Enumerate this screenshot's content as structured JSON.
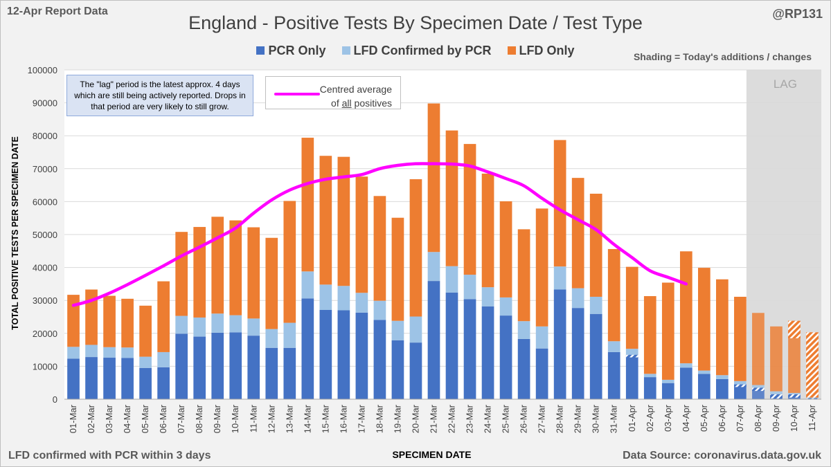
{
  "header": {
    "report_date": "12-Apr Report Data",
    "handle": "@RP131",
    "shading_note": "Shading = Today's additions / changes"
  },
  "notes": {
    "lag_note": "The \"lag\" period is the latest approx. 4 days which are still being actively reported. Drops in that period are very likely to still grow.",
    "avg_label_line1": "Centred average",
    "avg_label_prefix": "of ",
    "avg_label_underlined": "all",
    "avg_label_suffix": " positives",
    "lag_label": "LAG"
  },
  "footer": {
    "left": "LFD confirmed with PCR within 3 days",
    "right": "Data Source: coronavirus.data.gov.uk"
  },
  "colors": {
    "pcr": "#4472c4",
    "lfd_confirmed": "#9dc3e6",
    "lfd_only": "#ed7d31",
    "average": "#ff00ff",
    "lag_band": "#dcdcdc"
  },
  "chart_data": {
    "type": "bar",
    "stacked": true,
    "title": "England - Positive Tests By Specimen Date / Test Type",
    "xlabel": "SPECIMEN DATE",
    "ylabel": "TOTAL POSITIVE TESTS PER SPECIMEN DATE",
    "ylim": [
      0,
      100000
    ],
    "yticks": [
      0,
      10000,
      20000,
      30000,
      40000,
      50000,
      60000,
      70000,
      80000,
      90000,
      100000
    ],
    "grid": true,
    "legend_position": "top",
    "categories": [
      "01-Mar",
      "02-Mar",
      "03-Mar",
      "04-Mar",
      "05-Mar",
      "06-Mar",
      "07-Mar",
      "08-Mar",
      "09-Mar",
      "10-Mar",
      "11-Mar",
      "12-Mar",
      "13-Mar",
      "14-Mar",
      "15-Mar",
      "16-Mar",
      "17-Mar",
      "18-Mar",
      "19-Mar",
      "20-Mar",
      "21-Mar",
      "22-Mar",
      "23-Mar",
      "24-Mar",
      "25-Mar",
      "26-Mar",
      "27-Mar",
      "28-Mar",
      "29-Mar",
      "30-Mar",
      "31-Mar",
      "01-Apr",
      "02-Apr",
      "03-Apr",
      "04-Apr",
      "05-Apr",
      "06-Apr",
      "07-Apr",
      "08-Apr",
      "09-Apr",
      "10-Apr",
      "11-Apr"
    ],
    "series": [
      {
        "name": "PCR Only",
        "values": [
          12300,
          12800,
          12600,
          12500,
          9500,
          9700,
          19900,
          19000,
          20200,
          20300,
          19300,
          15600,
          15600,
          30600,
          27100,
          27000,
          26300,
          24100,
          17900,
          17200,
          35900,
          32400,
          30400,
          28200,
          25400,
          18300,
          15400,
          33300,
          27700,
          25900,
          14300,
          13500,
          6700,
          4900,
          9600,
          7700,
          6100,
          4500,
          3500,
          1500,
          1500,
          300
        ]
      },
      {
        "name": "LFD Confirmed by PCR",
        "values": [
          3600,
          3700,
          3200,
          3200,
          3400,
          4600,
          5400,
          5800,
          5800,
          5200,
          5200,
          5700,
          7600,
          8200,
          7700,
          7400,
          6000,
          5800,
          5900,
          7900,
          8800,
          8000,
          7400,
          5800,
          5500,
          5400,
          6700,
          7000,
          6000,
          5200,
          3300,
          1800,
          1000,
          1000,
          1300,
          1000,
          1200,
          1000,
          800,
          900,
          400,
          200
        ]
      },
      {
        "name": "LFD Only",
        "values": [
          15800,
          16800,
          15600,
          14800,
          15500,
          21500,
          25500,
          27500,
          29400,
          28800,
          27700,
          27700,
          37000,
          40600,
          39100,
          39200,
          35300,
          31800,
          31300,
          41700,
          45100,
          41200,
          39700,
          34500,
          29200,
          27900,
          35800,
          38400,
          33500,
          31300,
          28000,
          24900,
          23600,
          29500,
          34000,
          31200,
          29100,
          25600,
          21900,
          19700,
          21900,
          19800
        ]
      }
    ],
    "new_additions": {
      "PCR Only": [
        0,
        0,
        0,
        0,
        0,
        0,
        0,
        0,
        0,
        0,
        0,
        0,
        0,
        0,
        0,
        0,
        0,
        0,
        0,
        0,
        0,
        0,
        0,
        0,
        0,
        0,
        0,
        0,
        0,
        0,
        0,
        800,
        0,
        0,
        0,
        0,
        0,
        800,
        1000,
        1300,
        1000,
        300
      ],
      "LFD Confirmed by PCR": [
        0,
        0,
        0,
        0,
        0,
        0,
        0,
        0,
        0,
        0,
        0,
        0,
        0,
        0,
        0,
        0,
        0,
        0,
        0,
        0,
        0,
        0,
        0,
        0,
        0,
        0,
        0,
        0,
        0,
        0,
        0,
        0,
        0,
        0,
        0,
        0,
        0,
        0,
        0,
        0,
        0,
        0
      ],
      "LFD Only": [
        0,
        0,
        0,
        0,
        0,
        0,
        0,
        0,
        0,
        0,
        0,
        0,
        0,
        0,
        0,
        0,
        0,
        0,
        0,
        0,
        0,
        0,
        0,
        0,
        0,
        0,
        0,
        0,
        0,
        0,
        0,
        0,
        0,
        0,
        0,
        0,
        0,
        0,
        0,
        0,
        5300,
        19800
      ]
    },
    "average_line": {
      "name": "Centred average of all positives",
      "start_index": 0,
      "values": [
        28500,
        30000,
        32200,
        34800,
        37600,
        40500,
        43500,
        46200,
        49000,
        52000,
        56500,
        60500,
        63500,
        65500,
        66800,
        67500,
        68200,
        70000,
        71000,
        71500,
        71500,
        71400,
        70800,
        69000,
        67000,
        64800,
        61000,
        57500,
        54500,
        51500,
        47000,
        43000,
        39000,
        37000,
        35000
      ]
    },
    "lag_start": "08-Apr",
    "lag_end": "11-Apr"
  }
}
